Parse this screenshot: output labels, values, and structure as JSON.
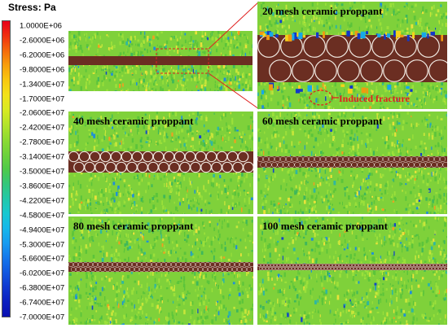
{
  "legend": {
    "title": "Stress:  Pa",
    "ticks": [
      "1.0000E+06",
      "-2.6000E+06",
      "-6.2000E+06",
      "-9.8000E+06",
      "-1.3400E+07",
      "-1.7000E+07",
      "-2.0600E+07",
      "-2.4200E+07",
      "-2.7800E+07",
      "-3.1400E+07",
      "-3.5000E+07",
      "-3.8600E+07",
      "-4.2200E+07",
      "-4.5800E+07",
      "-4.9400E+07",
      "-5.3000E+07",
      "-5.6600E+07",
      "-6.0200E+07",
      "-6.3800E+07",
      "-6.7400E+07",
      "-7.0000E+07"
    ],
    "colors": [
      "#e8001a",
      "#f03010",
      "#f56a0c",
      "#f8a00c",
      "#f8c810",
      "#f2e21a",
      "#d8ea22",
      "#b4e42a",
      "#8edb32",
      "#6fd23a",
      "#4fca48",
      "#34c77a",
      "#22c8a8",
      "#18c8d0",
      "#16b8ea",
      "#169cf0",
      "#1478ec",
      "#1258e0",
      "#1038d0",
      "#0c20c0",
      "#0a10b0"
    ]
  },
  "panels": {
    "p20": {
      "label": "20 mesh ceramic proppant",
      "annotation": "Induced fracture"
    },
    "p40": {
      "label": "40 mesh ceramic proppant"
    },
    "p60": {
      "label": "60 mesh ceramic proppant"
    },
    "p80": {
      "label": "80 mesh ceramic proppant"
    },
    "p100": {
      "label": "100 mesh ceramic proppant"
    }
  },
  "style": {
    "proppant_color": "#6b2e22",
    "matrix_color": "#7fd13a",
    "highlight_color": "#e0201f"
  }
}
